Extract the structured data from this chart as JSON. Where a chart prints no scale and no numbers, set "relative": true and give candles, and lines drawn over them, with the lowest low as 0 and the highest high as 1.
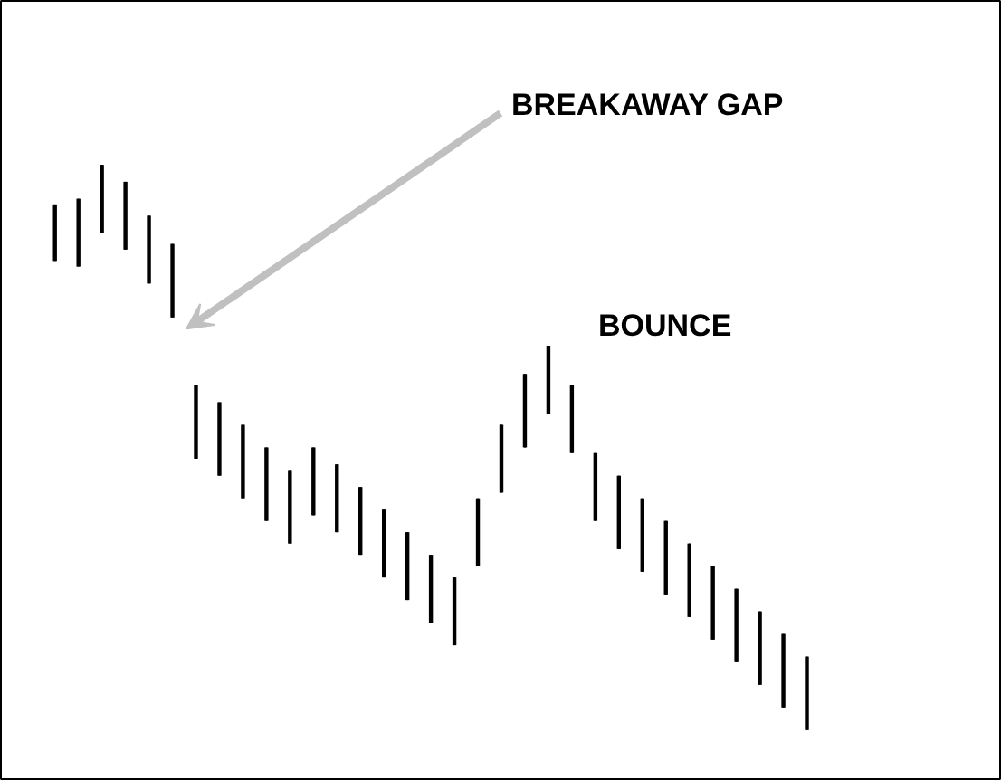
{
  "chart_data": {
    "type": "candlestick",
    "relative": true,
    "color": "#000000",
    "categories": [
      null,
      null,
      null,
      null,
      null,
      null,
      null,
      null,
      null,
      null,
      null,
      null,
      null,
      null,
      null,
      null,
      null,
      null,
      null,
      null,
      null,
      null,
      null,
      null,
      null,
      null,
      null,
      null,
      null,
      null,
      null,
      null,
      null
    ],
    "ohlc": [
      [
        0.93,
        0.93,
        0.83,
        0.83
      ],
      [
        0.94,
        0.94,
        0.82,
        0.82
      ],
      [
        1.0,
        1.0,
        0.88,
        0.88
      ],
      [
        0.97,
        0.97,
        0.85,
        0.85
      ],
      [
        0.91,
        0.91,
        0.79,
        0.79
      ],
      [
        0.86,
        0.86,
        0.73,
        0.73
      ],
      [
        0.61,
        0.61,
        0.48,
        0.48
      ],
      [
        0.58,
        0.58,
        0.45,
        0.45
      ],
      [
        0.54,
        0.54,
        0.41,
        0.41
      ],
      [
        0.5,
        0.5,
        0.37,
        0.37
      ],
      [
        0.46,
        0.46,
        0.33,
        0.33
      ],
      [
        0.5,
        0.5,
        0.38,
        0.38
      ],
      [
        0.47,
        0.47,
        0.35,
        0.35
      ],
      [
        0.43,
        0.43,
        0.31,
        0.31
      ],
      [
        0.39,
        0.39,
        0.27,
        0.27
      ],
      [
        0.35,
        0.35,
        0.23,
        0.23
      ],
      [
        0.31,
        0.31,
        0.19,
        0.19
      ],
      [
        0.27,
        0.27,
        0.15,
        0.15
      ],
      [
        0.41,
        0.41,
        0.29,
        0.29
      ],
      [
        0.54,
        0.54,
        0.42,
        0.42
      ],
      [
        0.63,
        0.63,
        0.5,
        0.5
      ],
      [
        0.68,
        0.68,
        0.56,
        0.56
      ],
      [
        0.61,
        0.61,
        0.49,
        0.49
      ],
      [
        0.49,
        0.49,
        0.37,
        0.37
      ],
      [
        0.45,
        0.45,
        0.32,
        0.32
      ],
      [
        0.41,
        0.41,
        0.28,
        0.28
      ],
      [
        0.37,
        0.37,
        0.24,
        0.24
      ],
      [
        0.33,
        0.33,
        0.2,
        0.2
      ],
      [
        0.29,
        0.29,
        0.16,
        0.16
      ],
      [
        0.25,
        0.25,
        0.12,
        0.12
      ],
      [
        0.21,
        0.21,
        0.08,
        0.08
      ],
      [
        0.17,
        0.17,
        0.04,
        0.04
      ],
      [
        0.13,
        0.13,
        0.0,
        0.0
      ]
    ],
    "annotations": [
      "BREAKAWAY GAP",
      "BOUNCE"
    ]
  }
}
